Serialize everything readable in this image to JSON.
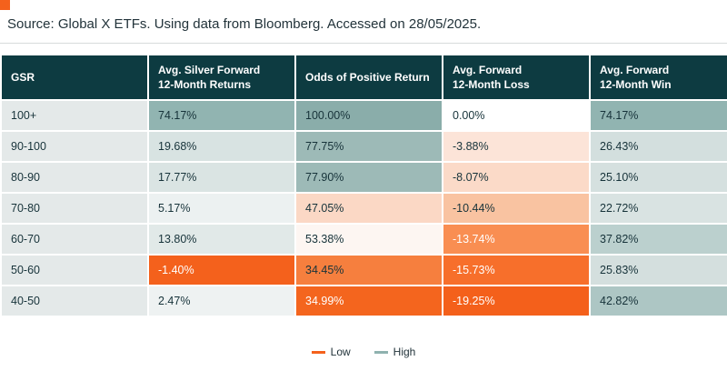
{
  "source_line": "Source:  Global X ETFs. Using data from Bloomberg. Accessed on 28/05/2025.",
  "accent": {
    "orange": "#f4611c",
    "teal_dark": "#0d3b41",
    "teal_mid": "#8fb2af"
  },
  "table": {
    "columns": [
      "GSR",
      "Avg. Silver Forward\n12-Month Returns",
      "Odds of Positive Return",
      "Avg. Forward\n12-Month Loss",
      "Avg. Forward\n12-Month Win"
    ],
    "rows": [
      {
        "gsr": "100+",
        "cells": [
          {
            "t": "74.17%",
            "bg": "#91b4b1"
          },
          {
            "t": "100.00%",
            "bg": "#8aadaa"
          },
          {
            "t": "0.00%",
            "bg": "#ffffff"
          },
          {
            "t": "74.17%",
            "bg": "#91b4b1"
          }
        ]
      },
      {
        "gsr": "90-100",
        "cells": [
          {
            "t": "19.68%",
            "bg": "#d8e3e2"
          },
          {
            "t": "77.75%",
            "bg": "#9dbab7"
          },
          {
            "t": "-3.88%",
            "bg": "#fce4d8"
          },
          {
            "t": "26.43%",
            "bg": "#d3dfde"
          }
        ]
      },
      {
        "gsr": "80-90",
        "cells": [
          {
            "t": "17.77%",
            "bg": "#dae4e3"
          },
          {
            "t": "77.90%",
            "bg": "#9dbab7"
          },
          {
            "t": "-8.07%",
            "bg": "#fbdac8"
          },
          {
            "t": "25.10%",
            "bg": "#d5e0df"
          }
        ]
      },
      {
        "gsr": "70-80",
        "cells": [
          {
            "t": "5.17%",
            "bg": "#ecf1f1"
          },
          {
            "t": "47.05%",
            "bg": "#fbd8c5"
          },
          {
            "t": "-10.44%",
            "bg": "#f9c3a1"
          },
          {
            "t": "22.72%",
            "bg": "#d9e3e2"
          }
        ]
      },
      {
        "gsr": "60-70",
        "cells": [
          {
            "t": "13.80%",
            "bg": "#e1e9e8"
          },
          {
            "t": "53.38%",
            "bg": "#fdf6f2"
          },
          {
            "t": "-13.74%",
            "bg": "#f98e52",
            "fg": "#ffffff"
          },
          {
            "t": "37.82%",
            "bg": "#bbd0ce"
          }
        ]
      },
      {
        "gsr": "50-60",
        "cells": [
          {
            "t": "-1.40%",
            "bg": "#f4611c",
            "fg": "#ffffff"
          },
          {
            "t": "34.45%",
            "bg": "#f67f3e"
          },
          {
            "t": "-15.73%",
            "bg": "#f76f2b",
            "fg": "#ffffff"
          },
          {
            "t": "25.83%",
            "bg": "#d4dfde"
          }
        ]
      },
      {
        "gsr": "40-50",
        "cells": [
          {
            "t": "2.47%",
            "bg": "#eef2f2"
          },
          {
            "t": "34.99%",
            "bg": "#f4651e",
            "fg": "#ffffff"
          },
          {
            "t": "-19.25%",
            "bg": "#f4601b",
            "fg": "#ffffff"
          },
          {
            "t": "42.82%",
            "bg": "#adc6c4"
          }
        ]
      }
    ]
  },
  "legend": [
    {
      "label": "Low",
      "color": "#f4611c"
    },
    {
      "label": "High",
      "color": "#8fb2af"
    }
  ],
  "chart_data": {
    "type": "heatmap",
    "title": "",
    "rows": [
      "100+",
      "90-100",
      "80-90",
      "70-80",
      "60-70",
      "50-60",
      "40-50"
    ],
    "row_axis_label": "GSR",
    "columns": [
      "Avg. Silver Forward 12-Month Returns",
      "Odds of Positive Return",
      "Avg. Forward 12-Month Loss",
      "Avg. Forward 12-Month Win"
    ],
    "values": [
      [
        74.17,
        100.0,
        0.0,
        74.17
      ],
      [
        19.68,
        77.75,
        -3.88,
        26.43
      ],
      [
        17.77,
        77.9,
        -8.07,
        25.1
      ],
      [
        5.17,
        47.05,
        -10.44,
        22.72
      ],
      [
        13.8,
        53.38,
        -13.74,
        37.82
      ],
      [
        -1.4,
        34.45,
        -15.73,
        25.83
      ],
      [
        2.47,
        34.99,
        -19.25,
        42.82
      ]
    ],
    "units": "%",
    "legend": [
      "Low",
      "High"
    ],
    "color_low": "#f4611c",
    "color_high": "#8fb2af",
    "legend_position": "bottom",
    "source": "Source: Global X ETFs. Using data from Bloomberg. Accessed on 28/05/2025."
  }
}
